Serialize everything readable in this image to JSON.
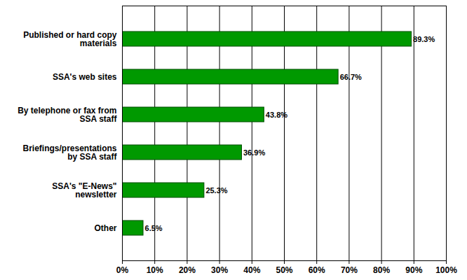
{
  "chart_data": {
    "type": "bar",
    "orientation": "horizontal",
    "categories": [
      "Published or hard copy\nmaterials",
      "SSA's web sites",
      "By telephone or fax from\nSSA staff",
      "Briefings/presentations\nby SSA staff",
      "SSA's \"E-News\"\nnewsletter",
      "Other"
    ],
    "values": [
      89.3,
      66.7,
      43.8,
      36.9,
      25.3,
      6.5
    ],
    "value_labels": [
      "89.3%",
      "66.7%",
      "43.8%",
      "36.9%",
      "25.3%",
      "6.5%"
    ],
    "data_labels": true,
    "color": "#009900",
    "xlim": [
      0,
      100
    ],
    "xticks": [
      {
        "value": 0,
        "label": "0%"
      },
      {
        "value": 10,
        "label": "10%"
      },
      {
        "value": 20,
        "label": "20%"
      },
      {
        "value": 30,
        "label": "30%"
      },
      {
        "value": 40,
        "label": "40%"
      },
      {
        "value": 50,
        "label": "50%"
      },
      {
        "value": 60,
        "label": "60%"
      },
      {
        "value": 70,
        "label": "70%"
      },
      {
        "value": 80,
        "label": "80%"
      },
      {
        "value": 90,
        "label": "90%"
      },
      {
        "value": 100,
        "label": "100%"
      }
    ],
    "grid": true
  }
}
